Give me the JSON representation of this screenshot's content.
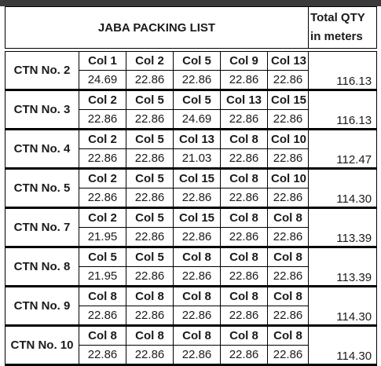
{
  "title": "JABA PACKING LIST",
  "total_header_line1": "Total QTY",
  "total_header_line2": "in meters",
  "cartons": [
    {
      "ctn": "CTN No. 2",
      "cols": [
        "Col 1",
        "Col 2",
        "Col 5",
        "Col 9",
        "Col 13"
      ],
      "vals": [
        "24.69",
        "22.86",
        "22.86",
        "22.86",
        "22.86"
      ],
      "total": "116.13"
    },
    {
      "ctn": "CTN No. 3",
      "cols": [
        "Col 2",
        "Col 5",
        "Col 5",
        "Col 13",
        "Col 15"
      ],
      "vals": [
        "22.86",
        "22.86",
        "24.69",
        "22.86",
        "22.86"
      ],
      "total": "116.13"
    },
    {
      "ctn": "CTN No. 4",
      "cols": [
        "Col 2",
        "Col 5",
        "Col 13",
        "Col 8",
        "Col 10"
      ],
      "vals": [
        "22.86",
        "22.86",
        "21.03",
        "22.86",
        "22.86"
      ],
      "total": "112.47"
    },
    {
      "ctn": "CTN No. 5",
      "cols": [
        "Col 2",
        "Col 5",
        "Col 15",
        "Col 8",
        "Col 10"
      ],
      "vals": [
        "22.86",
        "22.86",
        "22.86",
        "22.86",
        "22.86"
      ],
      "total": "114.30"
    },
    {
      "ctn": "CTN No. 7",
      "cols": [
        "Col 2",
        "Col 5",
        "Col 15",
        "Col 8",
        "Col 8"
      ],
      "vals": [
        "21.95",
        "22.86",
        "22.86",
        "22.86",
        "22.86"
      ],
      "total": "113.39"
    },
    {
      "ctn": "CTN No. 8",
      "cols": [
        "Col 5",
        "Col 5",
        "Col 8",
        "Col 8",
        "Col 8"
      ],
      "vals": [
        "21.95",
        "22.86",
        "22.86",
        "22.86",
        "22.86"
      ],
      "total": "113.39"
    },
    {
      "ctn": "CTN No. 9",
      "cols": [
        "Col 8",
        "Col 8",
        "Col 8",
        "Col 8",
        "Col 8"
      ],
      "vals": [
        "22.86",
        "22.86",
        "22.86",
        "22.86",
        "22.86"
      ],
      "total": "114.30"
    },
    {
      "ctn": "CTN No. 10",
      "cols": [
        "Col 8",
        "Col 8",
        "Col 8",
        "Col 8",
        "Col 8"
      ],
      "vals": [
        "22.86",
        "22.86",
        "22.86",
        "22.86",
        "22.86"
      ],
      "total": "114.30"
    }
  ]
}
